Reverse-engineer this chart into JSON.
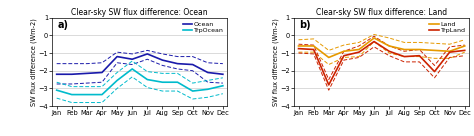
{
  "months": [
    "Jan",
    "Feb",
    "Mar",
    "Apr",
    "May",
    "Jun",
    "Jul",
    "Aug",
    "Sep",
    "Oct",
    "Nov",
    "Dec"
  ],
  "ocean_mean": [
    -2.2,
    -2.2,
    -2.15,
    -2.1,
    -1.2,
    -1.35,
    -1.05,
    -1.4,
    -1.6,
    -1.65,
    -2.1,
    -2.2
  ],
  "ocean_upper": [
    -1.6,
    -1.6,
    -1.6,
    -1.55,
    -0.95,
    -1.05,
    -0.85,
    -1.05,
    -1.2,
    -1.2,
    -1.55,
    -1.6
  ],
  "ocean_lower": [
    -2.75,
    -2.75,
    -2.7,
    -2.65,
    -1.55,
    -1.65,
    -1.35,
    -1.7,
    -1.9,
    -2.0,
    -2.65,
    -2.7
  ],
  "trpocean_mean": [
    -3.1,
    -3.35,
    -3.35,
    -3.35,
    -2.55,
    -1.9,
    -2.5,
    -2.65,
    -2.65,
    -3.15,
    -3.05,
    -2.85
  ],
  "trpocean_upper": [
    -2.65,
    -2.9,
    -2.9,
    -2.9,
    -2.1,
    -1.45,
    -2.05,
    -2.15,
    -2.15,
    -2.7,
    -2.55,
    -2.4
  ],
  "trpocean_lower": [
    -3.55,
    -3.8,
    -3.8,
    -3.8,
    -3.0,
    -2.35,
    -2.95,
    -3.15,
    -3.15,
    -3.6,
    -3.5,
    -3.3
  ],
  "land_mean": [
    -0.6,
    -0.6,
    -1.25,
    -0.9,
    -0.8,
    -0.15,
    -0.6,
    -0.8,
    -0.8,
    -0.85,
    -0.9,
    -0.6
  ],
  "land_upper": [
    -0.25,
    -0.2,
    -0.85,
    -0.55,
    -0.4,
    0.05,
    -0.15,
    -0.4,
    -0.4,
    -0.45,
    -0.5,
    -0.25
  ],
  "land_lower": [
    -0.95,
    -0.95,
    -1.65,
    -1.25,
    -1.2,
    -0.35,
    -1.0,
    -1.2,
    -1.2,
    -1.3,
    -1.3,
    -0.95
  ],
  "trpland_mean": [
    -0.75,
    -0.8,
    -2.8,
    -1.15,
    -0.95,
    -0.35,
    -0.9,
    -1.2,
    -1.15,
    -2.05,
    -0.95,
    -0.85
  ],
  "trpland_upper": [
    -0.5,
    -0.55,
    -2.5,
    -0.9,
    -0.6,
    -0.05,
    -0.6,
    -0.9,
    -0.8,
    -1.7,
    -0.65,
    -0.55
  ],
  "trpland_lower": [
    -1.0,
    -1.05,
    -3.1,
    -1.4,
    -1.25,
    -0.65,
    -1.15,
    -1.5,
    -1.5,
    -2.4,
    -1.25,
    -1.15
  ],
  "ocean_color": "#1a1aaa",
  "trpocean_color": "#00bbcc",
  "land_color": "#e69900",
  "trpland_color": "#cc2200",
  "title_a": "Clear-sky SW flux difference: Ocean",
  "title_b": "Clear-sky SW flux difference: Land",
  "ylabel": "SW flux difference (Wm-2)",
  "ylim": [
    -4,
    1
  ],
  "yticks": [
    -4,
    -3,
    -2,
    -1,
    0,
    1
  ],
  "bg_color": "#f5f5f5"
}
